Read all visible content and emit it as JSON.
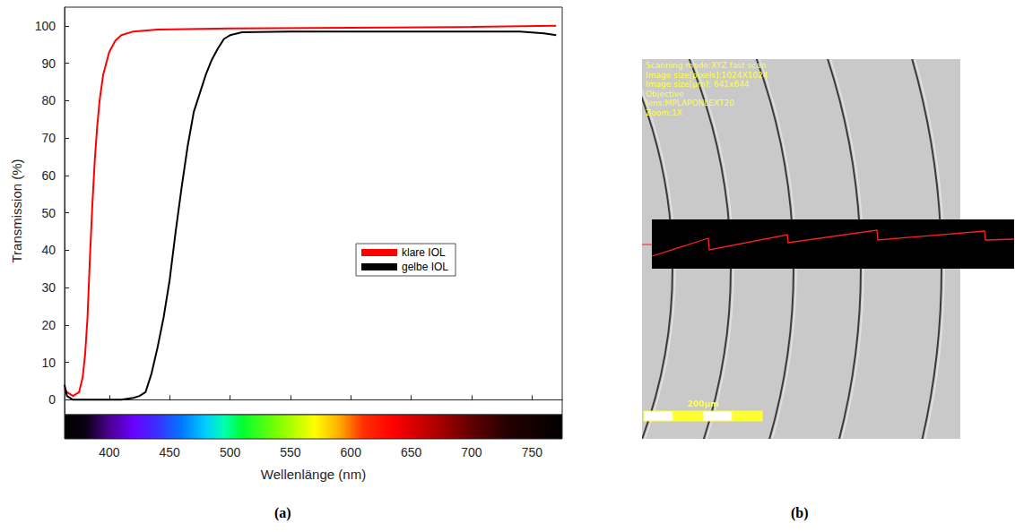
{
  "chart_data": {
    "type": "line",
    "x_label": "Wellenlänge (nm)",
    "y_label": "Transmission (%)",
    "xlim": [
      363,
      775
    ],
    "xticks": [
      400,
      450,
      500,
      550,
      600,
      650,
      700,
      750
    ],
    "ylim": [
      -4,
      105
    ],
    "yticks": [
      0,
      10,
      20,
      30,
      40,
      50,
      60,
      70,
      80,
      90,
      100
    ],
    "grid": false,
    "legend": "right",
    "series": [
      {
        "name": "klare IOL",
        "color": "#ff0000",
        "x": [
          363,
          365,
          370,
          375,
          378,
          380,
          382,
          384,
          386,
          388,
          390,
          392,
          395,
          400,
          405,
          410,
          420,
          440,
          500,
          600,
          700,
          770
        ],
        "values": [
          3,
          2,
          1,
          2,
          6,
          12,
          22,
          38,
          52,
          64,
          73,
          80,
          87,
          93,
          96,
          97.5,
          98.5,
          99,
          99.3,
          99.5,
          99.7,
          100
        ]
      },
      {
        "name": "gelbe IOL",
        "color": "#000000",
        "x": [
          363,
          365,
          370,
          380,
          390,
          400,
          410,
          420,
          425,
          430,
          435,
          440,
          445,
          450,
          455,
          460,
          465,
          470,
          475,
          480,
          485,
          490,
          495,
          500,
          510,
          550,
          600,
          700,
          740,
          760,
          770
        ],
        "values": [
          4,
          1,
          0,
          0,
          0,
          0,
          0,
          0.5,
          1,
          2,
          7,
          14,
          22,
          32,
          45,
          57,
          68,
          77,
          82,
          87,
          91,
          94,
          96.5,
          97.5,
          98.3,
          98.5,
          98.5,
          98.5,
          98.5,
          98,
          97.5
        ]
      }
    ]
  },
  "panel_labels": [
    "(a)",
    "(b)"
  ],
  "micrograph": {
    "overlay_text": [
      "Scanning mode:XYZ fast scan",
      "Image size[pixels]:1024X1024",
      "Image size[μm]: 641x644",
      "Objective",
      "lens:MPLAPONLEXT20",
      "Zoom:1X"
    ],
    "scale_bar": "200μm"
  }
}
